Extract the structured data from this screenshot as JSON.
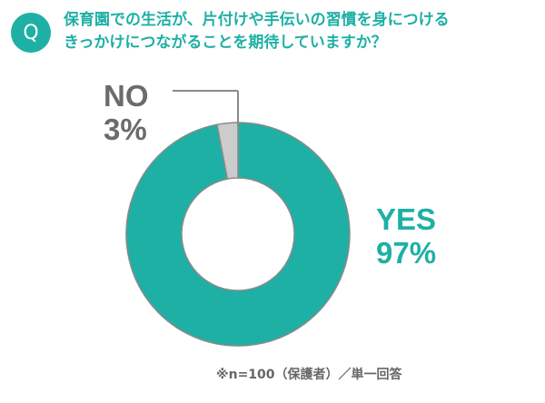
{
  "badge": "Q",
  "question": {
    "line1": "保育園での生活が、片付けや手伝いの習慣を身につける",
    "line2": "きっかけにつながることを期待していますか？"
  },
  "footnote": "※n=100（保護者）／単一回答",
  "colors": {
    "teal": "#1fb0a5",
    "gray": "#cccccc",
    "gray_text": "#6b6b6b",
    "outline": "#8a8a8a"
  },
  "chart_data": {
    "type": "pie",
    "variant": "donut",
    "start_angle_deg": 0,
    "direction": "clockwise",
    "slices": [
      {
        "label": "YES",
        "value": 97,
        "display": "97%",
        "color": "#1fb0a5"
      },
      {
        "label": "NO",
        "value": 3,
        "display": "3%",
        "color": "#cccccc"
      }
    ]
  }
}
